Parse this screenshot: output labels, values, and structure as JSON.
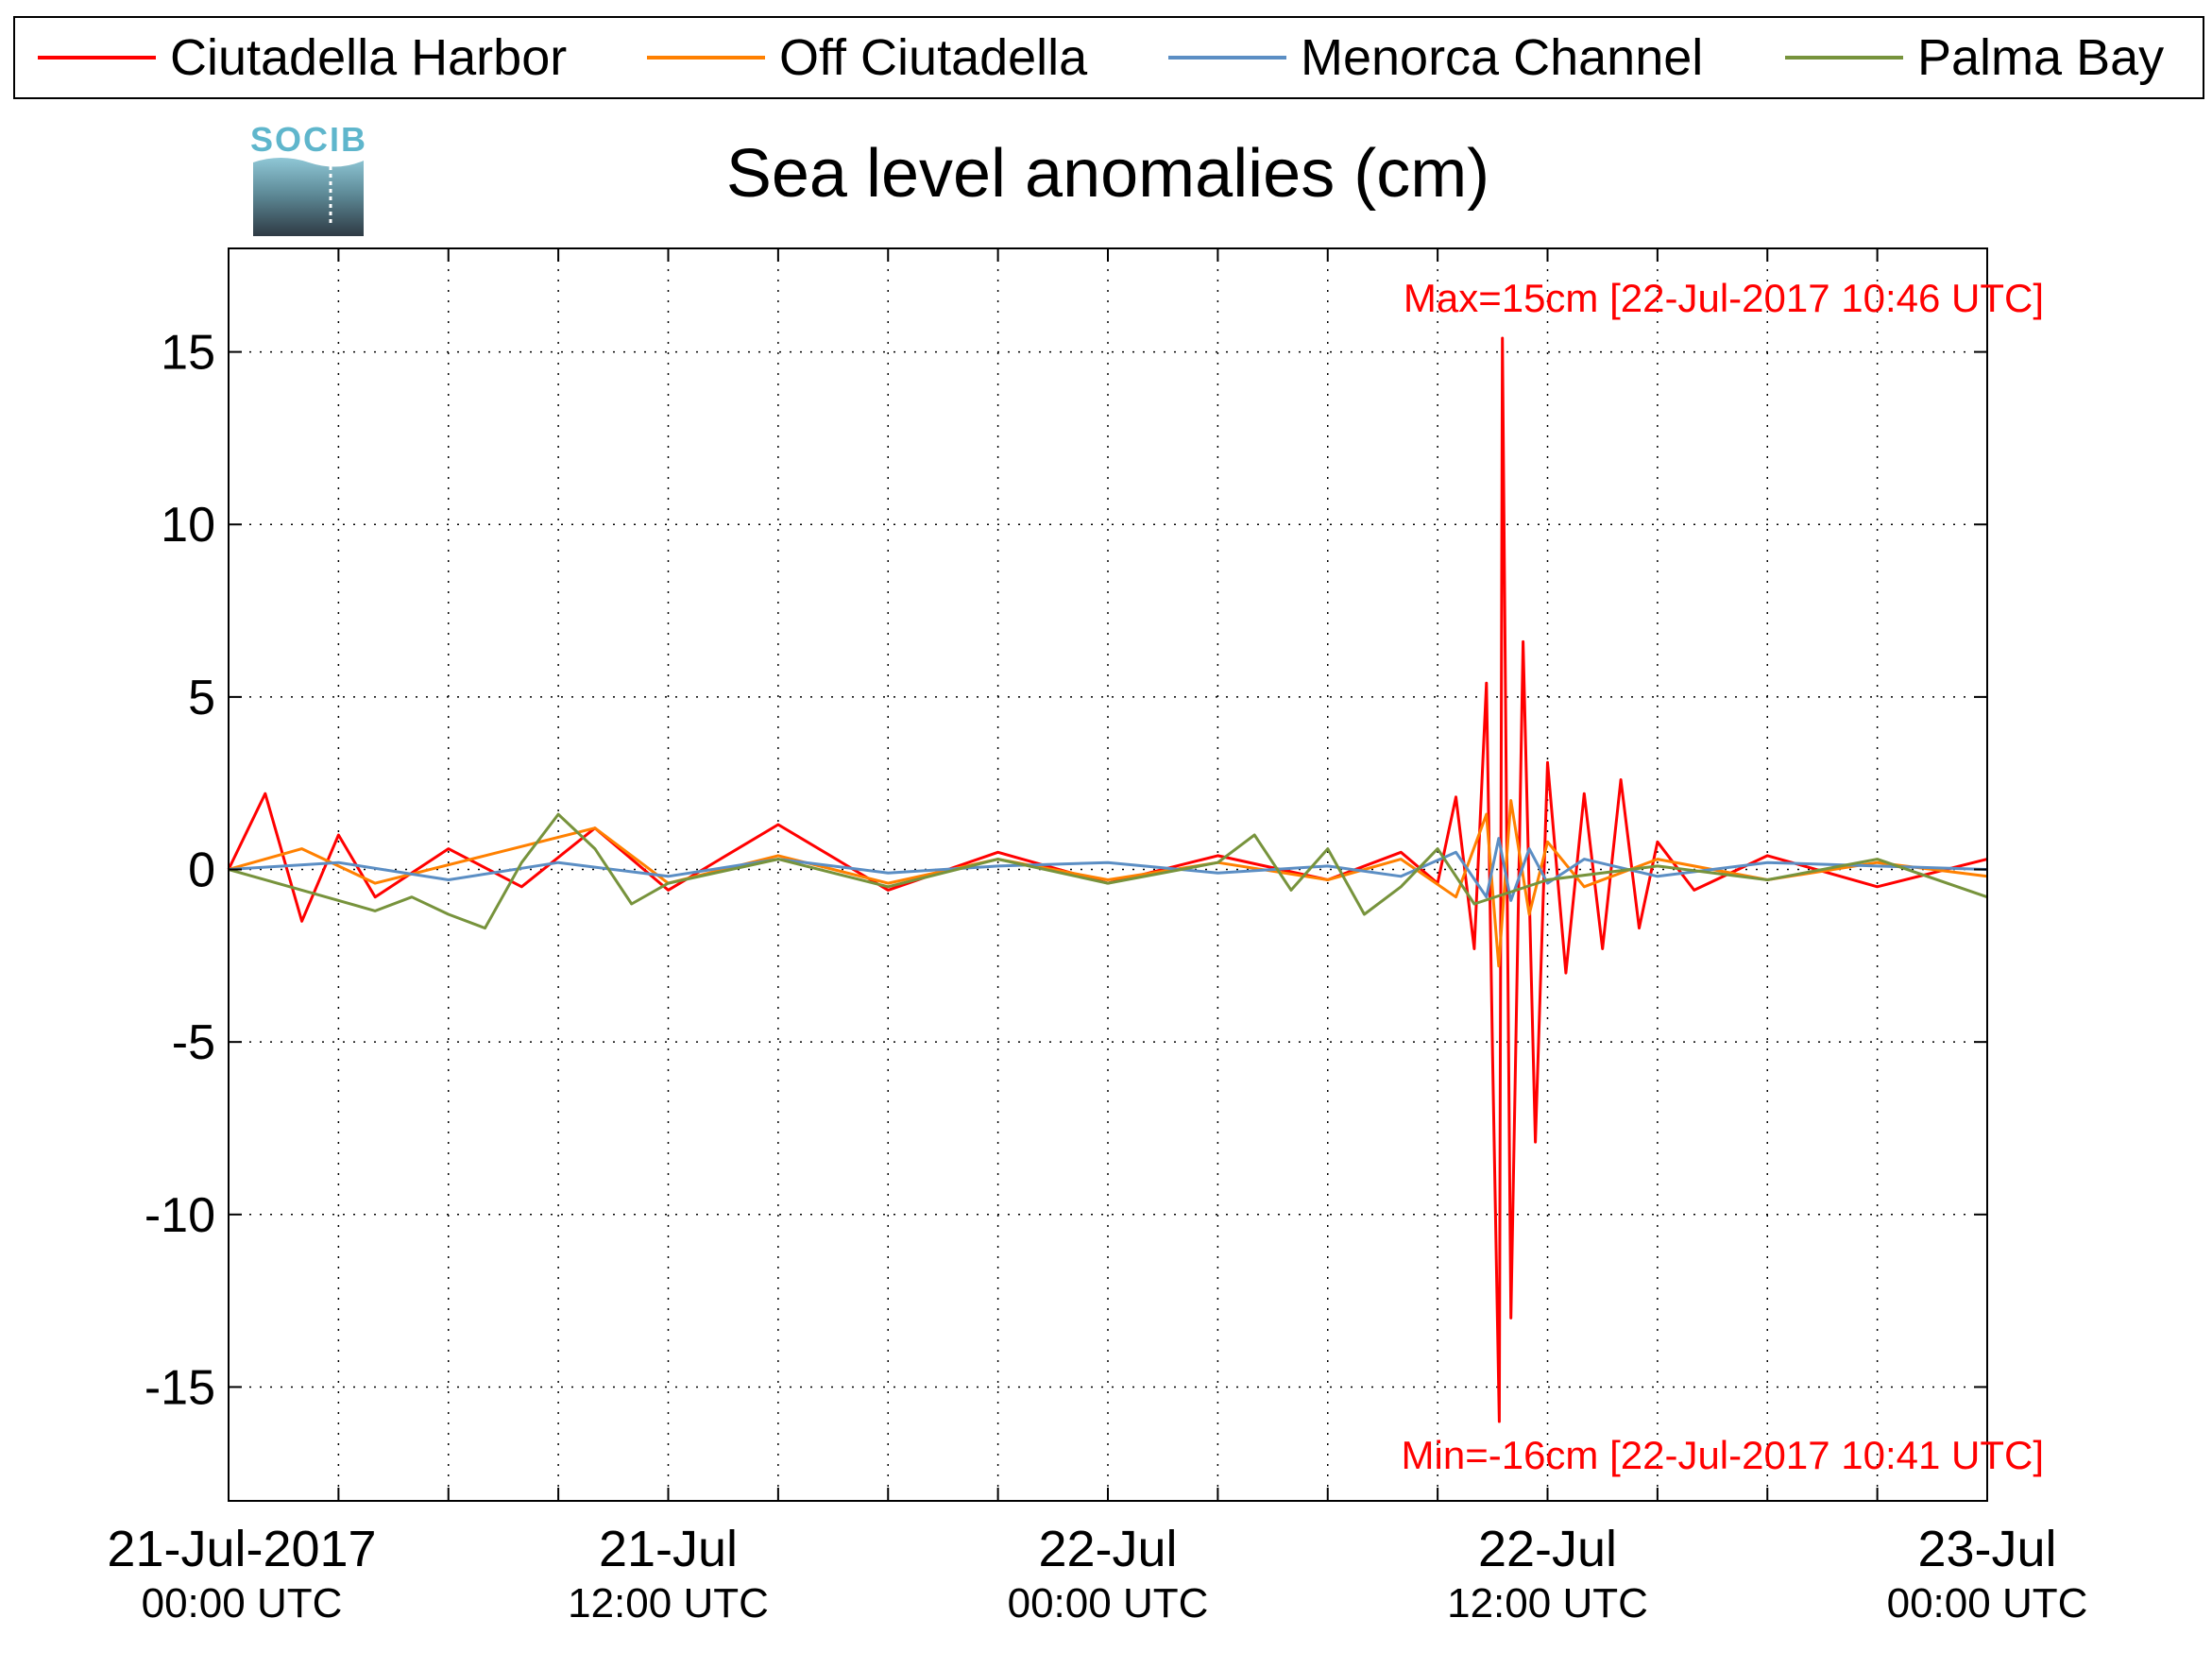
{
  "logo": {
    "text": "SOCIB"
  },
  "chart_data": {
    "type": "line",
    "title": "Sea level anomalies (cm)",
    "xlabel": "",
    "ylabel": "",
    "x_range": [
      "2017-07-21T00:00Z",
      "2017-07-23T00:00Z"
    ],
    "ylim": [
      -18.3,
      18.0
    ],
    "yticks": [
      15,
      10,
      5,
      0,
      -5,
      -10,
      -15
    ],
    "xtick_labels": [
      {
        "at": "2017-07-21T00:00Z",
        "line1": "21-Jul-2017",
        "line2": "00:00 UTC"
      },
      {
        "at": "2017-07-21T12:00Z",
        "line1": "21-Jul",
        "line2": "12:00 UTC"
      },
      {
        "at": "2017-07-22T00:00Z",
        "line1": "22-Jul",
        "line2": "00:00 UTC"
      },
      {
        "at": "2017-07-22T12:00Z",
        "line1": "22-Jul",
        "line2": "12:00 UTC"
      },
      {
        "at": "2017-07-23T00:00Z",
        "line1": "23-Jul",
        "line2": "00:00 UTC"
      }
    ],
    "grid": true,
    "legend_position": "top",
    "annotations": [
      {
        "text": "Max=15cm [22-Jul-2017 10:46 UTC]",
        "color": "#ff0000"
      },
      {
        "text": "Min=-16cm [22-Jul-2017 10:41 UTC]",
        "color": "#ff0000"
      }
    ],
    "series": [
      {
        "name": "Ciutadella Harbor",
        "color": "#ff0000",
        "x": [
          "2017-07-21T00:00Z",
          "2017-07-21T01:00Z",
          "2017-07-21T02:00Z",
          "2017-07-21T03:00Z",
          "2017-07-21T04:00Z",
          "2017-07-21T06:00Z",
          "2017-07-21T08:00Z",
          "2017-07-21T10:00Z",
          "2017-07-21T12:00Z",
          "2017-07-21T15:00Z",
          "2017-07-21T18:00Z",
          "2017-07-21T21:00Z",
          "2017-07-22T00:00Z",
          "2017-07-22T03:00Z",
          "2017-07-22T06:00Z",
          "2017-07-22T08:00Z",
          "2017-07-22T09:00Z",
          "2017-07-22T09:30Z",
          "2017-07-22T10:00Z",
          "2017-07-22T10:20Z",
          "2017-07-22T10:30Z",
          "2017-07-22T10:41Z",
          "2017-07-22T10:46Z",
          "2017-07-22T11:00Z",
          "2017-07-22T11:20Z",
          "2017-07-22T11:40Z",
          "2017-07-22T12:00Z",
          "2017-07-22T12:30Z",
          "2017-07-22T13:00Z",
          "2017-07-22T13:30Z",
          "2017-07-22T14:00Z",
          "2017-07-22T14:30Z",
          "2017-07-22T15:00Z",
          "2017-07-22T16:00Z",
          "2017-07-22T18:00Z",
          "2017-07-22T21:00Z",
          "2017-07-23T00:00Z"
        ],
        "y": [
          0.0,
          2.2,
          -1.5,
          1.0,
          -0.8,
          0.6,
          -0.5,
          1.2,
          -0.6,
          1.3,
          -0.6,
          0.5,
          -0.4,
          0.4,
          -0.3,
          0.5,
          -0.4,
          2.1,
          -2.3,
          5.4,
          -5.4,
          -16.0,
          15.4,
          -13.0,
          6.6,
          -7.9,
          3.1,
          -3.0,
          2.2,
          -2.3,
          2.6,
          -1.7,
          0.8,
          -0.6,
          0.4,
          -0.5,
          0.3
        ]
      },
      {
        "name": "Off Ciutadella",
        "color": "#ff8000",
        "x": [
          "2017-07-21T00:00Z",
          "2017-07-21T02:00Z",
          "2017-07-21T04:00Z",
          "2017-07-21T07:00Z",
          "2017-07-21T10:00Z",
          "2017-07-21T12:00Z",
          "2017-07-21T15:00Z",
          "2017-07-21T18:00Z",
          "2017-07-21T21:00Z",
          "2017-07-22T00:00Z",
          "2017-07-22T03:00Z",
          "2017-07-22T06:00Z",
          "2017-07-22T08:00Z",
          "2017-07-22T09:30Z",
          "2017-07-22T10:20Z",
          "2017-07-22T10:40Z",
          "2017-07-22T11:00Z",
          "2017-07-22T11:30Z",
          "2017-07-22T12:00Z",
          "2017-07-22T13:00Z",
          "2017-07-22T15:00Z",
          "2017-07-22T18:00Z",
          "2017-07-22T21:00Z",
          "2017-07-23T00:00Z"
        ],
        "y": [
          0.0,
          0.6,
          -0.4,
          0.4,
          1.2,
          -0.4,
          0.4,
          -0.4,
          0.3,
          -0.3,
          0.2,
          -0.3,
          0.3,
          -0.8,
          1.6,
          -2.8,
          2.0,
          -1.3,
          0.8,
          -0.5,
          0.3,
          -0.3,
          0.2,
          -0.2
        ]
      },
      {
        "name": "Menorca Channel",
        "color": "#5b8ec4",
        "x": [
          "2017-07-21T00:00Z",
          "2017-07-21T03:00Z",
          "2017-07-21T06:00Z",
          "2017-07-21T09:00Z",
          "2017-07-21T12:00Z",
          "2017-07-21T15:00Z",
          "2017-07-21T18:00Z",
          "2017-07-21T21:00Z",
          "2017-07-22T00:00Z",
          "2017-07-22T03:00Z",
          "2017-07-22T06:00Z",
          "2017-07-22T08:00Z",
          "2017-07-22T09:30Z",
          "2017-07-22T10:20Z",
          "2017-07-22T10:40Z",
          "2017-07-22T11:00Z",
          "2017-07-22T11:30Z",
          "2017-07-22T12:00Z",
          "2017-07-22T13:00Z",
          "2017-07-22T15:00Z",
          "2017-07-22T18:00Z",
          "2017-07-22T21:00Z",
          "2017-07-23T00:00Z"
        ],
        "y": [
          0.0,
          0.2,
          -0.3,
          0.2,
          -0.2,
          0.3,
          -0.1,
          0.1,
          0.2,
          -0.1,
          0.1,
          -0.2,
          0.5,
          -0.8,
          0.9,
          -0.9,
          0.6,
          -0.4,
          0.3,
          -0.2,
          0.2,
          0.1,
          0.0
        ]
      },
      {
        "name": "Palma Bay",
        "color": "#77933c",
        "x": [
          "2017-07-21T00:00Z",
          "2017-07-21T02:00Z",
          "2017-07-21T04:00Z",
          "2017-07-21T05:00Z",
          "2017-07-21T06:00Z",
          "2017-07-21T07:00Z",
          "2017-07-21T08:00Z",
          "2017-07-21T09:00Z",
          "2017-07-21T10:00Z",
          "2017-07-21T11:00Z",
          "2017-07-21T12:00Z",
          "2017-07-21T15:00Z",
          "2017-07-21T18:00Z",
          "2017-07-21T21:00Z",
          "2017-07-22T00:00Z",
          "2017-07-22T03:00Z",
          "2017-07-22T04:00Z",
          "2017-07-22T05:00Z",
          "2017-07-22T06:00Z",
          "2017-07-22T07:00Z",
          "2017-07-22T08:00Z",
          "2017-07-22T09:00Z",
          "2017-07-22T10:00Z",
          "2017-07-22T12:00Z",
          "2017-07-22T15:00Z",
          "2017-07-22T18:00Z",
          "2017-07-22T21:00Z",
          "2017-07-23T00:00Z"
        ],
        "y": [
          0.0,
          -0.6,
          -1.2,
          -0.8,
          -1.3,
          -1.7,
          0.2,
          1.6,
          0.6,
          -1.0,
          -0.4,
          0.3,
          -0.5,
          0.3,
          -0.4,
          0.2,
          1.0,
          -0.6,
          0.6,
          -1.3,
          -0.5,
          0.6,
          -1.0,
          -0.3,
          0.1,
          -0.3,
          0.3,
          -0.8
        ]
      }
    ]
  }
}
